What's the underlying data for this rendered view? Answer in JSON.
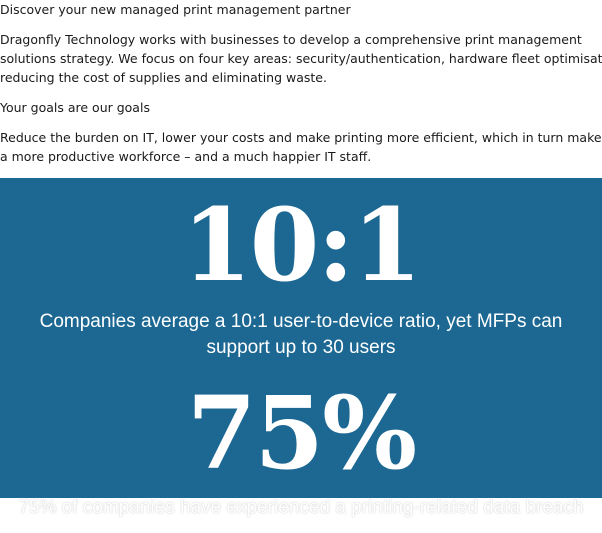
{
  "intro": {
    "heading": "Discover your new managed print management partner",
    "body_lines": [
      "Dragonfly Technology works with businesses to develop a comprehensive print management",
      "solutions strategy. We focus on four key areas: security/authentication, hardware fleet optimisation,",
      "reducing the cost of supplies and eliminating waste."
    ],
    "goals_heading": "Your goals are our goals",
    "goals_lines": [
      "Reduce the burden on IT, lower your costs and make printing more efficient, which in turn makes for",
      "a more productive workforce – and a much happier IT staff."
    ]
  },
  "stats": {
    "background_color": "#1c6893",
    "items": [
      {
        "figure": "10:1",
        "caption_lines": [
          "Companies average a 10:1 user-to-device ratio, yet MFPs can",
          "support up to 30 users"
        ]
      },
      {
        "figure": "75%",
        "caption_partial": "75% of companies have experienced a printing-related data breach"
      }
    ]
  }
}
